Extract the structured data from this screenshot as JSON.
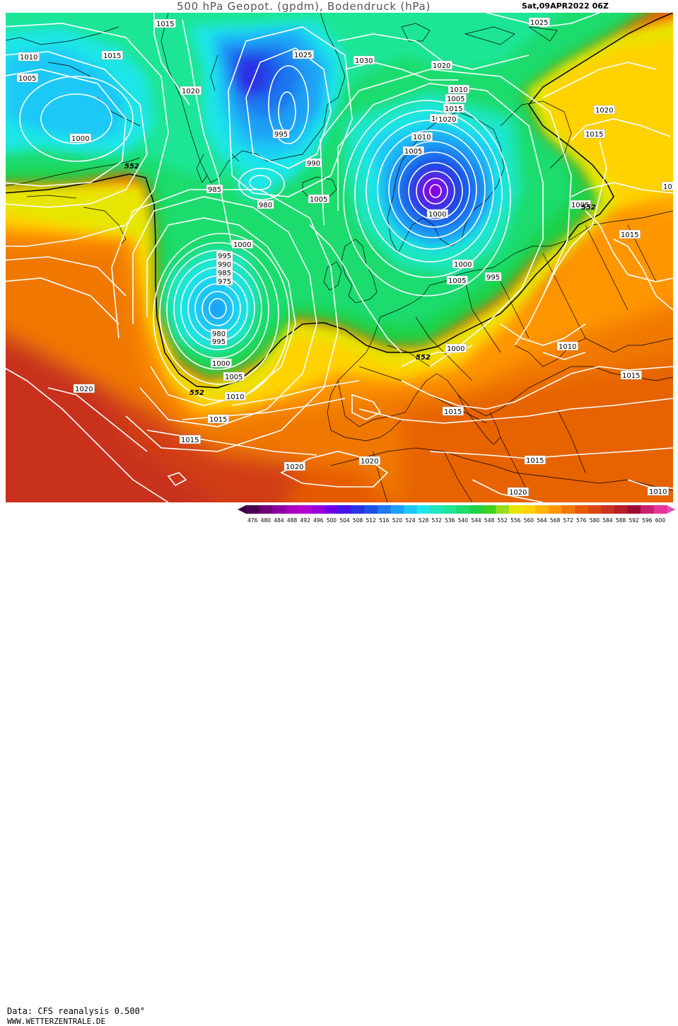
{
  "header": {
    "title": "500 hPa Geopot. (gpdm), Bodendruck (hPa)",
    "datetime": "Sat,09APR2022 06Z"
  },
  "footer": {
    "source": "Data: CFS reanalysis 0.500°",
    "website": "WWW.WETTERZENTRALE.DE"
  },
  "geopotential_contour_label": "552",
  "isobar_labels": [
    "1015",
    "1025",
    "1010",
    "1015",
    "1005",
    "1000",
    "1020",
    "1025",
    "1030",
    "1020",
    "1010",
    "1005",
    "1015",
    "1025",
    "1020",
    "1010",
    "1005",
    "1000",
    "995",
    "990",
    "985",
    "980",
    "1005",
    "1000",
    "995",
    "990",
    "985",
    "975",
    "980",
    "995",
    "1000",
    "1005",
    "1010",
    "1015",
    "1015",
    "1020",
    "1020",
    "1020",
    "1015",
    "1020",
    "1015",
    "1005",
    "1015",
    "1000",
    "1005",
    "995",
    "1000",
    "1010",
    "1015",
    "1015",
    "1020",
    "1010",
    "1010",
    "101"
  ],
  "colorbar": {
    "ticks": [
      "476",
      "480",
      "484",
      "488",
      "492",
      "496",
      "500",
      "504",
      "508",
      "512",
      "516",
      "520",
      "524",
      "528",
      "532",
      "536",
      "540",
      "544",
      "548",
      "552",
      "556",
      "560",
      "564",
      "568",
      "572",
      "576",
      "580",
      "584",
      "588",
      "592",
      "596",
      "600"
    ],
    "colors": [
      "#4b0050",
      "#6e0078",
      "#8c00a0",
      "#a800be",
      "#b400d2",
      "#9600dc",
      "#6e00e6",
      "#4614e6",
      "#2a32e6",
      "#1e50e6",
      "#1e78f0",
      "#1ea0f5",
      "#1ec8f5",
      "#1ee6e6",
      "#1ee6be",
      "#1ee696",
      "#1edc6e",
      "#1ed246",
      "#3cd21e",
      "#96dc1e",
      "#e6e600",
      "#ffd200",
      "#ffb400",
      "#ff9600",
      "#f07800",
      "#e65a00",
      "#dc4614",
      "#c8321e",
      "#b41e28",
      "#9b0a32",
      "#c81e6e",
      "#e6329b"
    ],
    "under_color": "#3c0046",
    "over_color": "#e050b4"
  }
}
